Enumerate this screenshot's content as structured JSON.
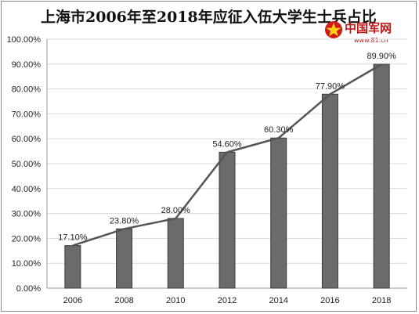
{
  "title": "上海市2006年至2018年应征入伍大学生士兵占比",
  "logo": {
    "name": "中国军网",
    "url": "www.81.cn"
  },
  "chart_data": {
    "type": "bar",
    "title": "上海市2006年至2018年应征入伍大学生士兵占比",
    "xlabel": "",
    "ylabel": "",
    "categories": [
      "2006",
      "2008",
      "2010",
      "2012",
      "2014",
      "2016",
      "2018"
    ],
    "series": [
      {
        "values": [
          17.1,
          23.8,
          28.0,
          54.6,
          60.3,
          77.9,
          89.9
        ]
      }
    ],
    "data_labels": [
      "17.10%",
      "23.80%",
      "28.00%",
      "54.60%",
      "60.30%",
      "77.90%",
      "89.90%"
    ],
    "line_overlay": true,
    "ylim": [
      0,
      100
    ],
    "yticks": [
      "0.00%",
      "10.00%",
      "20.00%",
      "30.00%",
      "40.00%",
      "50.00%",
      "60.00%",
      "70.00%",
      "80.00%",
      "90.00%",
      "100.00%"
    ],
    "grid": true,
    "colors": {
      "bar": "#6b6b6b",
      "bar_edge": "#3c3c3c",
      "line": "#555555",
      "grid": "#d9d9d9"
    }
  }
}
